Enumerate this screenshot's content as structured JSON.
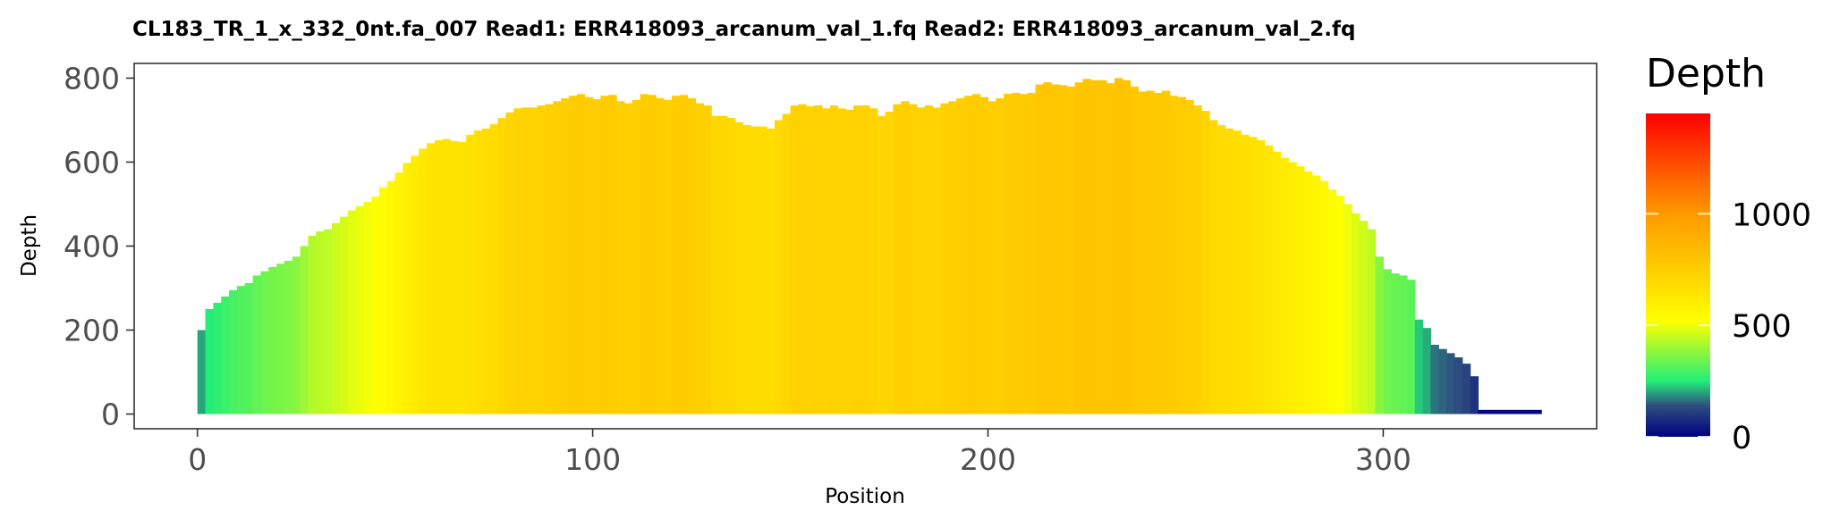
{
  "chart_data": {
    "type": "bar",
    "title": "CL183_TR_1_x_332_0nt.fa_007   Read1: ERR418093_arcanum_val_1.fq   Read2: ERR418093_arcanum_val_2.fq",
    "xlabel": "Position",
    "ylabel": "Depth",
    "xlim": [
      -16,
      354
    ],
    "ylim": [
      -35,
      835
    ],
    "x_ticks": [
      0,
      100,
      200,
      300
    ],
    "x_tick_labels": [
      "0",
      "100",
      "200",
      "300"
    ],
    "y_ticks": [
      0,
      200,
      400,
      600,
      800
    ],
    "y_tick_labels": [
      "0",
      "200",
      "400",
      "600",
      "800"
    ],
    "grid": false,
    "color_scale": {
      "title": "Depth",
      "min": 0,
      "max": 1450,
      "breaks": [
        0,
        500,
        1000
      ],
      "break_labels": [
        "0",
        "500",
        "1000"
      ],
      "stops": [
        {
          "value": 0,
          "color": "#000080"
        },
        {
          "value": 140,
          "color": "#2f4f7f"
        },
        {
          "value": 250,
          "color": "#22ee77"
        },
        {
          "value": 520,
          "color": "#ffff00"
        },
        {
          "value": 1000,
          "color": "#ff9900"
        },
        {
          "value": 1450,
          "color": "#ff0000"
        }
      ]
    },
    "series": [
      {
        "x": [
          0,
          2,
          4,
          6,
          8,
          10,
          12,
          14,
          16,
          18,
          20,
          22,
          24,
          26,
          28,
          30,
          32,
          34,
          36,
          38,
          40,
          42,
          44,
          46,
          48,
          50,
          52,
          54,
          56,
          58,
          60,
          62,
          64,
          66,
          68,
          70,
          72,
          74,
          76,
          78,
          80,
          82,
          84,
          86,
          88,
          90,
          92,
          94,
          96,
          98,
          100,
          102,
          104,
          106,
          108,
          110,
          112,
          114,
          116,
          118,
          120,
          122,
          124,
          126,
          128,
          130,
          132,
          134,
          136,
          138,
          140,
          142,
          144,
          146,
          148,
          150,
          152,
          154,
          156,
          158,
          160,
          162,
          164,
          166,
          168,
          170,
          172,
          174,
          176,
          178,
          180,
          182,
          184,
          186,
          188,
          190,
          192,
          194,
          196,
          198,
          200,
          202,
          204,
          206,
          208,
          210,
          212,
          214,
          216,
          218,
          220,
          222,
          224,
          226,
          228,
          230,
          232,
          234,
          236,
          238,
          240,
          242,
          244,
          246,
          248,
          250,
          252,
          254,
          256,
          258,
          260,
          262,
          264,
          266,
          268,
          270,
          272,
          274,
          276,
          278,
          280,
          282,
          284,
          286,
          288,
          290,
          292,
          294,
          296,
          298,
          300,
          302,
          304,
          306,
          308,
          310,
          312,
          314,
          316,
          318,
          320,
          322,
          324,
          326,
          328,
          330,
          332,
          334,
          336,
          338
        ],
        "values": [
          200,
          250,
          265,
          280,
          295,
          305,
          312,
          330,
          340,
          350,
          358,
          365,
          375,
          400,
          425,
          435,
          440,
          455,
          470,
          485,
          495,
          505,
          518,
          540,
          555,
          575,
          598,
          615,
          632,
          645,
          652,
          655,
          650,
          648,
          665,
          675,
          680,
          690,
          705,
          718,
          728,
          730,
          730,
          735,
          738,
          745,
          752,
          758,
          762,
          755,
          750,
          758,
          760,
          745,
          740,
          748,
          762,
          760,
          752,
          748,
          758,
          760,
          752,
          740,
          735,
          710,
          710,
          705,
          695,
          688,
          685,
          685,
          680,
          700,
          715,
          735,
          738,
          733,
          735,
          728,
          735,
          728,
          725,
          735,
          735,
          728,
          710,
          720,
          738,
          745,
          738,
          730,
          735,
          730,
          740,
          745,
          752,
          758,
          762,
          755,
          745,
          752,
          763,
          765,
          762,
          765,
          785,
          790,
          785,
          783,
          780,
          790,
          798,
          795,
          795,
          788,
          800,
          795,
          780,
          768,
          770,
          765,
          770,
          758,
          755,
          748,
          735,
          722,
          700,
          688,
          680,
          675,
          665,
          660,
          652,
          640,
          625,
          610,
          600,
          590,
          578,
          568,
          555,
          535,
          520,
          500,
          478,
          460,
          440,
          375,
          345,
          335,
          330,
          320,
          225,
          205,
          165,
          155,
          145,
          135,
          120,
          90,
          10,
          10,
          10,
          10,
          10,
          10,
          10,
          10
        ]
      }
    ]
  }
}
